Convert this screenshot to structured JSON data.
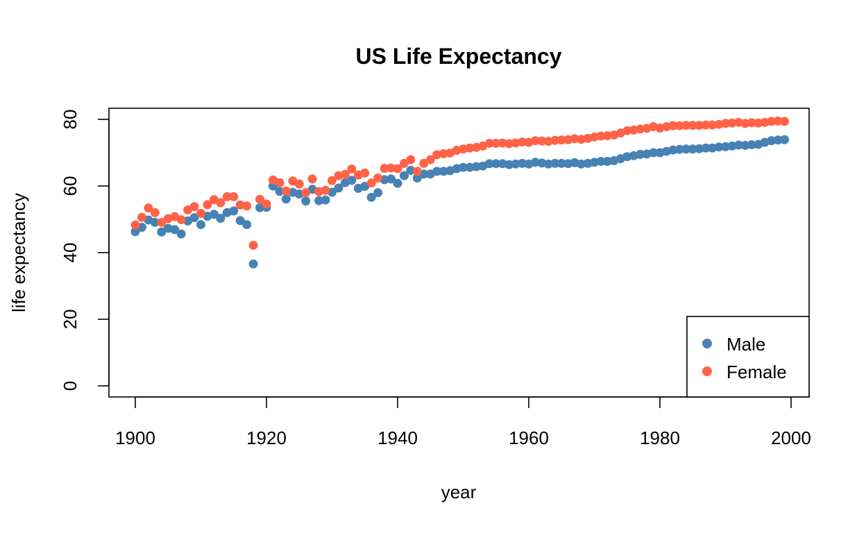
{
  "chart_data": {
    "type": "scatter",
    "title": "US Life Expectancy",
    "xlabel": "year",
    "ylabel": "life expectancy",
    "xlim": [
      1895,
      2002
    ],
    "ylim": [
      -3,
      83
    ],
    "x_ticks": [
      "1900",
      "1920",
      "1940",
      "1960",
      "1980",
      "2000"
    ],
    "y_ticks": [
      "0",
      "20",
      "40",
      "60",
      "80"
    ],
    "grid": false,
    "legend_position": "bottom-right",
    "x": [
      1900,
      1901,
      1902,
      1903,
      1904,
      1905,
      1906,
      1907,
      1908,
      1909,
      1910,
      1911,
      1912,
      1913,
      1914,
      1915,
      1916,
      1917,
      1918,
      1919,
      1920,
      1921,
      1922,
      1923,
      1924,
      1925,
      1926,
      1927,
      1928,
      1929,
      1930,
      1931,
      1932,
      1933,
      1934,
      1935,
      1936,
      1937,
      1938,
      1939,
      1940,
      1941,
      1942,
      1943,
      1944,
      1945,
      1946,
      1947,
      1948,
      1949,
      1950,
      1951,
      1952,
      1953,
      1954,
      1955,
      1956,
      1957,
      1958,
      1959,
      1960,
      1961,
      1962,
      1963,
      1964,
      1965,
      1966,
      1967,
      1968,
      1969,
      1970,
      1971,
      1972,
      1973,
      1974,
      1975,
      1976,
      1977,
      1978,
      1979,
      1980,
      1981,
      1982,
      1983,
      1984,
      1985,
      1986,
      1987,
      1988,
      1989,
      1990,
      1991,
      1992,
      1993,
      1994,
      1995,
      1996,
      1997,
      1998,
      1999
    ],
    "series": [
      {
        "name": "Male",
        "color": "#4682B4",
        "values": [
          46.3,
          47.6,
          49.8,
          49.1,
          46.2,
          47.3,
          46.9,
          45.6,
          49.5,
          50.5,
          48.4,
          50.9,
          51.5,
          50.3,
          52.0,
          52.5,
          49.6,
          48.4,
          36.6,
          53.5,
          53.6,
          60.0,
          58.4,
          56.1,
          58.1,
          57.6,
          55.5,
          59.0,
          55.6,
          55.8,
          58.1,
          59.4,
          61.0,
          61.7,
          59.3,
          59.9,
          56.6,
          58.0,
          61.9,
          62.1,
          60.8,
          63.1,
          64.7,
          62.4,
          63.6,
          63.6,
          64.4,
          64.4,
          64.6,
          65.2,
          65.6,
          65.6,
          65.8,
          66.0,
          66.7,
          66.7,
          66.7,
          66.4,
          66.6,
          66.8,
          66.6,
          67.1,
          66.9,
          66.6,
          66.8,
          66.8,
          66.7,
          67.0,
          66.6,
          66.8,
          67.1,
          67.4,
          67.4,
          67.6,
          68.2,
          68.8,
          69.1,
          69.5,
          69.6,
          70.0,
          70.0,
          70.4,
          70.8,
          71.0,
          71.1,
          71.1,
          71.2,
          71.4,
          71.4,
          71.7,
          71.8,
          72.0,
          72.3,
          72.2,
          72.4,
          72.5,
          73.1,
          73.6,
          73.8,
          73.9
        ]
      },
      {
        "name": "Female",
        "color": "#FF6347",
        "values": [
          48.3,
          50.6,
          53.4,
          52.0,
          49.1,
          50.2,
          50.8,
          49.9,
          52.8,
          53.8,
          51.8,
          54.4,
          55.9,
          55.0,
          56.8,
          56.8,
          54.3,
          54.0,
          42.2,
          56.0,
          54.6,
          61.8,
          61.0,
          58.5,
          61.5,
          60.6,
          58.0,
          62.1,
          58.3,
          58.7,
          61.6,
          63.1,
          63.5,
          65.1,
          63.3,
          63.9,
          60.9,
          62.4,
          65.3,
          65.4,
          65.2,
          66.8,
          67.9,
          64.4,
          66.8,
          67.9,
          69.4,
          69.7,
          69.9,
          70.7,
          71.1,
          71.4,
          71.6,
          72.0,
          72.8,
          72.8,
          72.9,
          72.7,
          72.9,
          73.2,
          73.1,
          73.6,
          73.5,
          73.4,
          73.7,
          73.8,
          73.9,
          74.2,
          74.0,
          74.3,
          74.7,
          75.0,
          75.1,
          75.3,
          75.9,
          76.6,
          76.8,
          77.1,
          77.3,
          77.8,
          77.4,
          77.8,
          78.1,
          78.1,
          78.2,
          78.2,
          78.2,
          78.3,
          78.3,
          78.5,
          78.8,
          78.9,
          79.1,
          78.8,
          79.0,
          78.9,
          79.1,
          79.4,
          79.5,
          79.4
        ]
      }
    ]
  }
}
